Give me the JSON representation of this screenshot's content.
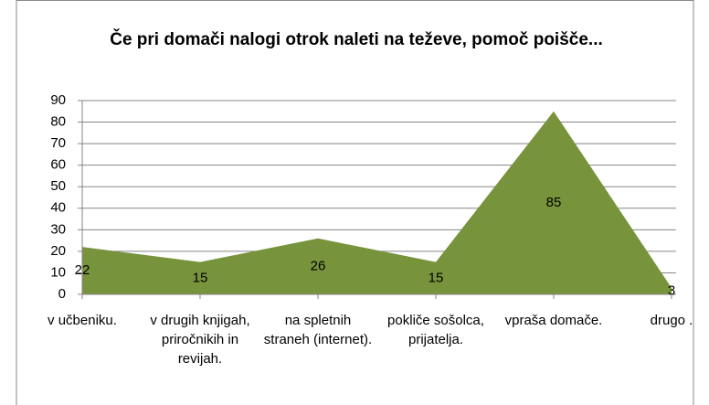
{
  "chart_data": {
    "type": "area",
    "title": "Če pri domači nalogi otrok naleti na teževe, pomoč poišče...",
    "categories": [
      "v učbeniku.",
      "v drugih knjigah, priročnikih in revijah.",
      "na spletnih straneh (internet).",
      "pokliče sošolca, prijatelja.",
      "vpraša domače.",
      "drugo ."
    ],
    "values": [
      22,
      15,
      26,
      15,
      85,
      3
    ],
    "color": "#77933c",
    "ylim": [
      0,
      90
    ],
    "yticks": [
      0,
      10,
      20,
      30,
      40,
      50,
      60,
      70,
      80,
      90
    ],
    "grid": true
  }
}
